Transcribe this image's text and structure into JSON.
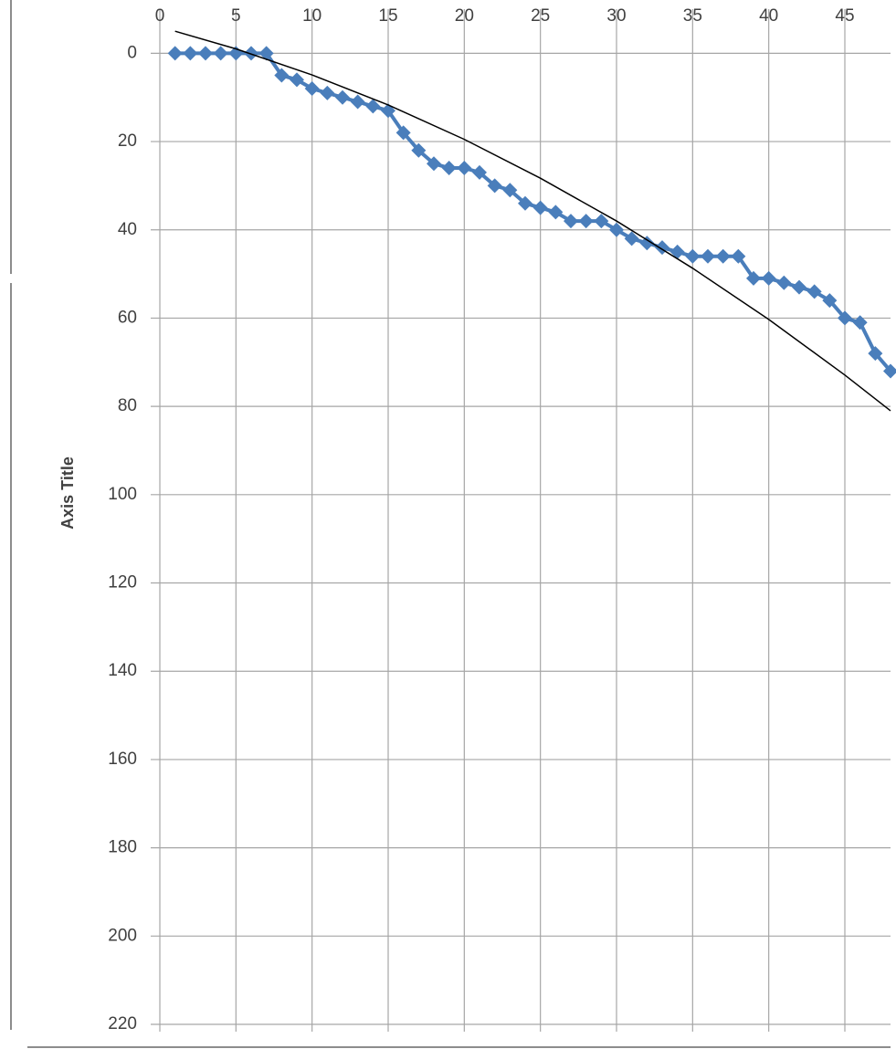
{
  "chart_data": {
    "type": "line",
    "y_axis_title": "Axis Title",
    "xlim": [
      0,
      48
    ],
    "xticks": [
      0,
      5,
      10,
      15,
      20,
      25,
      30,
      35,
      40,
      45
    ],
    "ylim": [
      -10,
      220
    ],
    "yticks": [
      0,
      20,
      40,
      60,
      80,
      100,
      120,
      140,
      160,
      180,
      200,
      220
    ],
    "y_reversed": true,
    "grid": true,
    "series": [
      {
        "color": "#4a7ebb",
        "marker": "diamond",
        "x": [
          1,
          2,
          3,
          4,
          5,
          6,
          7,
          8,
          9,
          10,
          11,
          12,
          13,
          14,
          15,
          16,
          17,
          18,
          19,
          20,
          21,
          22,
          23,
          24,
          25,
          26,
          27,
          28,
          29,
          30,
          31,
          32,
          33,
          34,
          35,
          36,
          37,
          38,
          39,
          40,
          41,
          42,
          43,
          44,
          45,
          46,
          47,
          48
        ],
        "values": [
          0,
          0,
          0,
          0,
          0,
          0,
          0,
          5,
          6,
          8,
          9,
          10,
          11,
          12,
          13,
          18,
          22,
          25,
          26,
          26,
          27,
          30,
          31,
          34,
          35,
          36,
          38,
          38,
          38,
          40,
          42,
          43,
          44,
          45,
          46,
          46,
          46,
          46,
          51,
          51,
          52,
          53,
          54,
          56,
          60,
          61,
          68,
          72
        ]
      },
      {
        "color": "#000000",
        "marker": "none",
        "x": [
          1,
          5,
          10,
          15,
          20,
          25,
          30,
          35,
          40,
          45,
          48
        ],
        "values": [
          -5,
          -1,
          4.9,
          11.7,
          19.5,
          28.3,
          38,
          48.7,
          60.3,
          72.9,
          81
        ]
      }
    ]
  }
}
